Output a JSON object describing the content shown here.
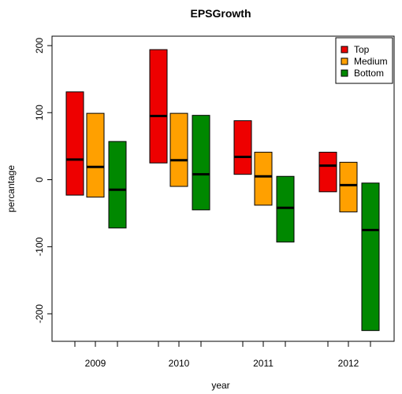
{
  "chart_data": {
    "type": "box",
    "title": "EPSGrowth",
    "xlabel": "year",
    "ylabel": "percantage",
    "categories": [
      "2009",
      "2010",
      "2011",
      "2012"
    ],
    "y_ticks": [
      "-200",
      "-100",
      "0",
      "100",
      "200"
    ],
    "ylim": [
      -240,
      210
    ],
    "grid": false,
    "legend_position": "top-right",
    "series": [
      {
        "name": "Top",
        "color": "#ee0000",
        "boxes": [
          {
            "low": -23,
            "median": 30,
            "high": 131
          },
          {
            "low": 25,
            "median": 95,
            "high": 194
          },
          {
            "low": 8,
            "median": 34,
            "high": 88
          },
          {
            "low": -18,
            "median": 21,
            "high": 41
          }
        ]
      },
      {
        "name": "Medium",
        "color": "#ffa000",
        "boxes": [
          {
            "low": -26,
            "median": 19,
            "high": 99
          },
          {
            "low": -10,
            "median": 29,
            "high": 99
          },
          {
            "low": -38,
            "median": 5,
            "high": 41
          },
          {
            "low": -48,
            "median": -8,
            "high": 26
          }
        ]
      },
      {
        "name": "Bottom",
        "color": "#008800",
        "boxes": [
          {
            "low": -72,
            "median": -15,
            "high": 57
          },
          {
            "low": -45,
            "median": 8,
            "high": 96
          },
          {
            "low": -93,
            "median": -42,
            "high": 5
          },
          {
            "low": -225,
            "median": -75,
            "high": -5
          }
        ]
      }
    ]
  }
}
